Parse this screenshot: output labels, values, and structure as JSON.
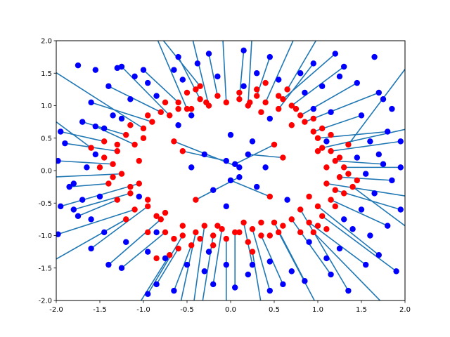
{
  "chart_data": {
    "type": "scatter",
    "title": "",
    "xlabel": "",
    "ylabel": "",
    "xlim": [
      -2,
      2
    ],
    "ylim": [
      -2,
      2
    ],
    "x_ticks": [
      "-2.0",
      "-1.5",
      "-1.0",
      "-0.5",
      "0.0",
      "0.5",
      "1.0",
      "1.5",
      "2.0"
    ],
    "y_ticks": [
      "-2.0",
      "-1.5",
      "-1.0",
      "-0.5",
      "0.0",
      "0.5",
      "1.0",
      "1.5",
      "2.0"
    ],
    "x_tick_values": [
      -2,
      -1.5,
      -1,
      -0.5,
      0,
      0.5,
      1,
      1.5,
      2
    ],
    "y_tick_values": [
      -2,
      -1.5,
      -1,
      -0.5,
      0,
      0.5,
      1,
      1.5,
      2
    ],
    "grid": false,
    "colors": {
      "source_points": "#ff0000",
      "target_points": "#0000ff",
      "connecting_lines": "#1f77b4"
    },
    "description_note": "",
    "segments": [
      {
        "from": [
          -1.45,
          0.45
        ],
        "to": [
          -1.95,
          0.6
        ]
      },
      {
        "from": [
          -1.3,
          0.3
        ],
        "to": [
          -1.9,
          0.42
        ]
      },
      {
        "from": [
          -1.2,
          0.55
        ],
        "to": [
          -1.7,
          0.75
        ]
      },
      {
        "from": [
          -1.35,
          0.1
        ],
        "to": [
          -1.98,
          0.15
        ]
      },
      {
        "from": [
          -1.1,
          0.4
        ],
        "to": [
          -1.55,
          0.68
        ]
      },
      {
        "from": [
          -1.25,
          -0.05
        ],
        "to": [
          -2.05,
          -0.1
        ]
      },
      {
        "from": [
          -1.4,
          -0.2
        ],
        "to": [
          -1.85,
          -0.25
        ]
      },
      {
        "from": [
          -1.15,
          -0.35
        ],
        "to": [
          -1.8,
          -0.6
        ]
      },
      {
        "from": [
          -1.05,
          -0.2
        ],
        "to": [
          -1.95,
          -0.55
        ]
      },
      {
        "from": [
          -1.3,
          -0.45
        ],
        "to": [
          -1.75,
          -0.7
        ]
      },
      {
        "from": [
          -0.95,
          -0.55
        ],
        "to": [
          -1.6,
          -1.2
        ]
      },
      {
        "from": [
          -1.1,
          -0.6
        ],
        "to": [
          -1.98,
          -0.98
        ]
      },
      {
        "from": [
          -0.8,
          -0.75
        ],
        "to": [
          -1.4,
          -1.45
        ]
      },
      {
        "from": [
          -0.75,
          -0.95
        ],
        "to": [
          -1.25,
          -1.5
        ]
      },
      {
        "from": [
          -0.55,
          -1.0
        ],
        "to": [
          -0.95,
          -1.9
        ]
      },
      {
        "from": [
          -0.6,
          -1.2
        ],
        "to": [
          -0.85,
          -1.75
        ]
      },
      {
        "from": [
          -0.45,
          -1.15
        ],
        "to": [
          -0.65,
          -1.85
        ]
      },
      {
        "from": [
          -0.4,
          -0.95
        ],
        "to": [
          -0.6,
          -2.2
        ]
      },
      {
        "from": [
          -0.3,
          -0.85
        ],
        "to": [
          -0.45,
          -2.3
        ]
      },
      {
        "from": [
          -0.2,
          -1.0
        ],
        "to": [
          -0.35,
          -2.25
        ]
      },
      {
        "from": [
          -0.1,
          -0.9
        ],
        "to": [
          -0.2,
          -1.75
        ]
      },
      {
        "from": [
          -0.05,
          -1.05
        ],
        "to": [
          -0.05,
          -2.3
        ]
      },
      {
        "from": [
          0.05,
          -0.95
        ],
        "to": [
          0.05,
          -1.8
        ]
      },
      {
        "from": [
          0.15,
          -0.8
        ],
        "to": [
          0.25,
          -1.45
        ]
      },
      {
        "from": [
          0.25,
          -0.9
        ],
        "to": [
          0.45,
          -1.85
        ]
      },
      {
        "from": [
          0.35,
          -1.0
        ],
        "to": [
          0.6,
          -1.75
        ]
      },
      {
        "from": [
          0.5,
          -0.8
        ],
        "to": [
          0.85,
          -1.7
        ]
      },
      {
        "from": [
          0.55,
          -0.95
        ],
        "to": [
          1.0,
          -2.1
        ]
      },
      {
        "from": [
          0.7,
          -0.75
        ],
        "to": [
          1.15,
          -1.6
        ]
      },
      {
        "from": [
          0.8,
          -0.6
        ],
        "to": [
          1.35,
          -1.85
        ]
      },
      {
        "from": [
          0.9,
          -0.8
        ],
        "to": [
          1.55,
          -1.45
        ]
      },
      {
        "from": [
          1.0,
          -0.55
        ],
        "to": [
          1.7,
          -1.3
        ]
      },
      {
        "from": [
          1.05,
          -0.7
        ],
        "to": [
          1.9,
          -1.55
        ]
      },
      {
        "from": [
          1.15,
          -0.45
        ],
        "to": [
          1.8,
          -0.85
        ]
      },
      {
        "from": [
          1.2,
          -0.3
        ],
        "to": [
          1.95,
          -0.6
        ]
      },
      {
        "from": [
          1.1,
          -0.2
        ],
        "to": [
          2.05,
          -0.4
        ]
      },
      {
        "from": [
          1.25,
          -0.1
        ],
        "to": [
          1.85,
          -0.15
        ]
      },
      {
        "from": [
          1.3,
          0.05
        ],
        "to": [
          1.95,
          0.05
        ]
      },
      {
        "from": [
          1.2,
          0.15
        ],
        "to": [
          1.75,
          0.1
        ]
      },
      {
        "from": [
          1.15,
          0.3
        ],
        "to": [
          1.95,
          0.45
        ]
      },
      {
        "from": [
          1.05,
          0.35
        ],
        "to": [
          2.05,
          0.65
        ]
      },
      {
        "from": [
          1.0,
          0.5
        ],
        "to": [
          1.8,
          0.6
        ]
      },
      {
        "from": [
          0.95,
          0.6
        ],
        "to": [
          1.5,
          0.85
        ]
      },
      {
        "from": [
          0.85,
          0.75
        ],
        "to": [
          1.7,
          1.2
        ]
      },
      {
        "from": [
          0.8,
          0.85
        ],
        "to": [
          1.45,
          1.35
        ]
      },
      {
        "from": [
          0.7,
          1.0
        ],
        "to": [
          1.3,
          1.6
        ]
      },
      {
        "from": [
          0.6,
          1.1
        ],
        "to": [
          1.2,
          1.8
        ]
      },
      {
        "from": [
          0.55,
          0.95
        ],
        "to": [
          0.95,
          1.65
        ]
      },
      {
        "from": [
          0.4,
          1.05
        ],
        "to": [
          0.75,
          2.1
        ]
      },
      {
        "from": [
          0.3,
          1.15
        ],
        "to": [
          0.45,
          1.75
        ]
      },
      {
        "from": [
          0.2,
          1.0
        ],
        "to": [
          0.25,
          2.2
        ]
      },
      {
        "from": [
          0.1,
          1.1
        ],
        "to": [
          0.15,
          1.85
        ]
      },
      {
        "from": [
          -0.05,
          1.05
        ],
        "to": [
          -0.1,
          2.3
        ]
      },
      {
        "from": [
          -0.15,
          1.15
        ],
        "to": [
          -0.25,
          1.8
        ]
      },
      {
        "from": [
          -0.25,
          1.0
        ],
        "to": [
          -0.45,
          2.1
        ]
      },
      {
        "from": [
          -0.35,
          1.1
        ],
        "to": [
          -0.6,
          1.75
        ]
      },
      {
        "from": [
          -0.5,
          0.95
        ],
        "to": [
          -0.85,
          2.05
        ]
      },
      {
        "from": [
          -0.6,
          1.05
        ],
        "to": [
          -1.0,
          1.55
        ]
      },
      {
        "from": [
          -0.7,
          0.85
        ],
        "to": [
          -1.25,
          1.6
        ]
      },
      {
        "from": [
          -0.8,
          0.9
        ],
        "to": [
          -1.4,
          1.3
        ]
      },
      {
        "from": [
          -0.9,
          0.75
        ],
        "to": [
          -1.6,
          1.05
        ]
      },
      {
        "from": [
          -1.0,
          0.65
        ],
        "to": [
          -2.05,
          1.55
        ]
      },
      {
        "from": [
          -0.65,
          0.45
        ],
        "to": [
          0.1,
          0.05
        ]
      },
      {
        "from": [
          -0.55,
          0.3
        ],
        "to": [
          -0.05,
          0.15
        ]
      },
      {
        "from": [
          0.5,
          0.4
        ],
        "to": [
          0.05,
          0.1
        ]
      },
      {
        "from": [
          0.45,
          -0.4
        ],
        "to": [
          0.0,
          -0.15
        ]
      },
      {
        "from": [
          -0.4,
          -0.45
        ],
        "to": [
          0.1,
          -0.1
        ]
      },
      {
        "from": [
          0.6,
          0.2
        ],
        "to": [
          0.2,
          0.25
        ]
      },
      {
        "from": [
          -1.6,
          0.35
        ],
        "to": [
          -2.05,
          0.8
        ]
      },
      {
        "from": [
          1.4,
          -0.25
        ],
        "to": [
          2.05,
          -0.9
        ]
      },
      {
        "from": [
          1.35,
          0.4
        ],
        "to": [
          2.05,
          1.65
        ]
      },
      {
        "from": [
          -1.2,
          -0.75
        ],
        "to": [
          -2.05,
          -1.4
        ]
      },
      {
        "from": [
          0.95,
          -0.95
        ],
        "to": [
          1.75,
          -2.05
        ]
      },
      {
        "from": [
          -0.35,
          1.3
        ],
        "to": [
          -0.8,
          2.05
        ]
      },
      {
        "from": [
          0.65,
          1.25
        ],
        "to": [
          1.0,
          2.05
        ]
      },
      {
        "from": [
          -0.7,
          -1.3
        ],
        "to": [
          -1.05,
          -2.05
        ]
      },
      {
        "from": [
          0.25,
          -1.25
        ],
        "to": [
          0.35,
          -2.05
        ]
      }
    ],
    "extra_target_points": [
      [
        -1.75,
        1.62
      ],
      [
        -1.55,
        1.55
      ],
      [
        -1.3,
        1.58
      ],
      [
        -1.1,
        1.45
      ],
      [
        -0.95,
        1.35
      ],
      [
        -0.65,
        1.55
      ],
      [
        -0.55,
        1.4
      ],
      [
        -0.38,
        1.65
      ],
      [
        -0.15,
        1.45
      ],
      [
        0.3,
        1.5
      ],
      [
        0.55,
        1.4
      ],
      [
        0.8,
        1.5
      ],
      [
        1.05,
        1.3
      ],
      [
        1.25,
        1.45
      ],
      [
        1.65,
        1.75
      ],
      [
        1.75,
        1.1
      ],
      [
        1.85,
        0.95
      ],
      [
        1.6,
        0.45
      ],
      [
        1.7,
        0.25
      ],
      [
        1.55,
        -0.05
      ],
      [
        1.65,
        -0.35
      ],
      [
        1.5,
        -0.6
      ],
      [
        1.4,
        -0.9
      ],
      [
        1.6,
        -1.0
      ],
      [
        1.25,
        -1.2
      ],
      [
        1.1,
        -1.35
      ],
      [
        0.9,
        -1.1
      ],
      [
        0.7,
        -1.55
      ],
      [
        0.45,
        -1.4
      ],
      [
        0.2,
        -1.6
      ],
      [
        -0.05,
        -1.45
      ],
      [
        -0.3,
        -1.55
      ],
      [
        -0.5,
        -1.45
      ],
      [
        -0.75,
        -1.35
      ],
      [
        -0.95,
        -1.25
      ],
      [
        -1.2,
        -1.1
      ],
      [
        -1.45,
        -0.95
      ],
      [
        -1.6,
        -0.75
      ],
      [
        -1.7,
        -0.45
      ],
      [
        -1.8,
        -0.2
      ],
      [
        -1.65,
        0.05
      ],
      [
        -1.55,
        0.25
      ],
      [
        -1.45,
        0.65
      ],
      [
        -1.35,
        0.85
      ],
      [
        -1.15,
        1.1
      ],
      [
        -0.85,
        1.15
      ],
      [
        -0.45,
        0.85
      ],
      [
        0.45,
        0.8
      ],
      [
        0.85,
        1.2
      ],
      [
        1.15,
        0.9
      ],
      [
        -0.3,
        0.25
      ],
      [
        0.3,
        -0.25
      ],
      [
        -0.2,
        -0.3
      ],
      [
        0.25,
        0.45
      ],
      [
        -0.45,
        0.05
      ],
      [
        0.4,
        0.05
      ],
      [
        -1.25,
        0.8
      ],
      [
        1.3,
        -0.75
      ],
      [
        -0.25,
        -1.25
      ],
      [
        0.15,
        1.3
      ],
      [
        -1.5,
        -0.4
      ],
      [
        1.45,
        0.2
      ],
      [
        -0.85,
        -0.95
      ],
      [
        0.95,
        0.95
      ],
      [
        -0.6,
        0.7
      ],
      [
        0.65,
        -0.45
      ],
      [
        -1.05,
        -0.4
      ],
      [
        1.1,
        0.45
      ],
      [
        0.0,
        0.55
      ],
      [
        -0.05,
        -0.55
      ]
    ],
    "extra_source_points": [
      [
        -0.5,
        1.2
      ],
      [
        -0.4,
        1.25
      ],
      [
        -0.28,
        1.05
      ],
      [
        0.1,
        1.2
      ],
      [
        0.22,
        1.05
      ],
      [
        0.35,
        0.9
      ],
      [
        0.55,
        1.15
      ],
      [
        0.75,
        0.95
      ],
      [
        0.95,
        0.8
      ],
      [
        1.05,
        0.65
      ],
      [
        1.15,
        0.55
      ],
      [
        1.25,
        0.2
      ],
      [
        1.35,
        -0.05
      ],
      [
        1.3,
        -0.35
      ],
      [
        1.2,
        -0.55
      ],
      [
        1.0,
        -0.85
      ],
      [
        0.8,
        -0.95
      ],
      [
        0.6,
        -0.85
      ],
      [
        0.35,
        -0.8
      ],
      [
        0.1,
        -0.95
      ],
      [
        -0.15,
        -0.85
      ],
      [
        -0.35,
        -1.05
      ],
      [
        -0.55,
        -0.85
      ],
      [
        -0.75,
        -0.65
      ],
      [
        -0.95,
        -0.45
      ],
      [
        -1.15,
        -0.25
      ],
      [
        -1.35,
        -0.1
      ],
      [
        -1.45,
        0.2
      ],
      [
        -1.3,
        0.4
      ],
      [
        -1.15,
        0.7
      ],
      [
        -0.95,
        0.85
      ],
      [
        -0.75,
        1.05
      ],
      [
        -0.6,
        0.95
      ],
      [
        -1.05,
        0.15
      ],
      [
        1.1,
        0.05
      ],
      [
        -0.2,
        -1.15
      ],
      [
        0.3,
        1.25
      ],
      [
        1.45,
        -0.15
      ],
      [
        -1.5,
        0.05
      ],
      [
        0.45,
        -1.0
      ],
      [
        -0.45,
        0.95
      ],
      [
        0.7,
        0.7
      ],
      [
        -0.85,
        -0.7
      ],
      [
        0.9,
        -0.4
      ],
      [
        -1.0,
        0.5
      ],
      [
        1.0,
        0.3
      ],
      [
        -0.65,
        -1.05
      ],
      [
        0.2,
        -1.1
      ],
      [
        -0.95,
        -0.95
      ],
      [
        -0.85,
        -1.35
      ],
      [
        1.1,
        -0.9
      ],
      [
        0.4,
        1.35
      ]
    ]
  }
}
